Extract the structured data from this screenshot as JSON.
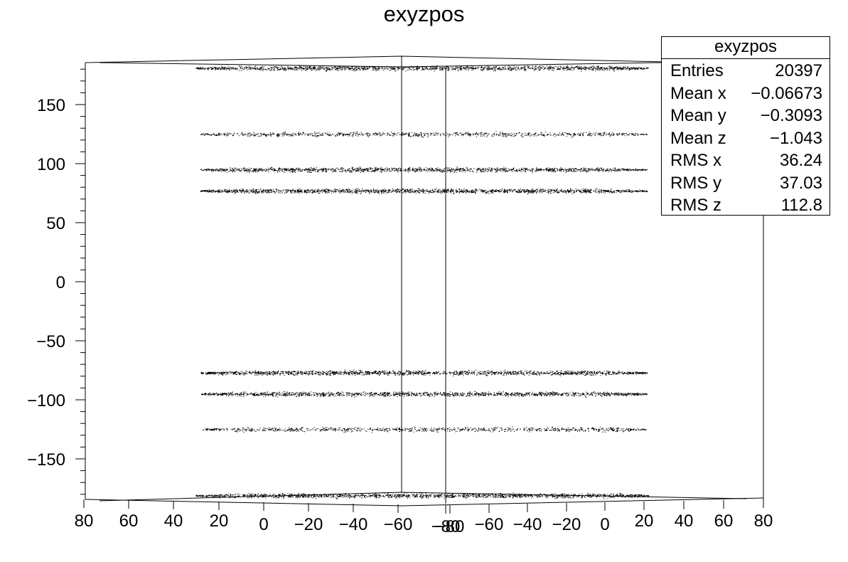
{
  "chart_data": {
    "type": "scatter",
    "title": "exyzpos",
    "y_tick_labels": [
      "150",
      "100",
      "50",
      "0",
      "−50",
      "−100",
      "−150"
    ],
    "y_tick_values": [
      150,
      100,
      50,
      0,
      -50,
      -100,
      -150
    ],
    "ylim": [
      -185,
      185
    ],
    "x_tick_labels_left": [
      "80",
      "60",
      "40",
      "20",
      "0",
      "−20",
      "−40",
      "−60",
      "−80"
    ],
    "x_tick_labels_right": [
      "−80",
      "−60",
      "−40",
      "−20",
      "0",
      "20",
      "40",
      "60",
      "80"
    ],
    "grid": false,
    "legend": "none",
    "point_color": "#000000",
    "bands": [
      {
        "y": 181,
        "density": 1.0
      },
      {
        "y": 125,
        "density": 0.6
      },
      {
        "y": 95,
        "density": 1.0
      },
      {
        "y": 77,
        "density": 1.1
      },
      {
        "y": -77,
        "density": 1.1
      },
      {
        "y": -95,
        "density": 1.0
      },
      {
        "y": -125,
        "density": 0.6
      },
      {
        "y": -181,
        "density": 1.0
      }
    ]
  },
  "stats": {
    "title": "exyzpos",
    "rows": [
      {
        "label": "Entries",
        "value": "20397"
      },
      {
        "label": "Mean x",
        "value": "−0.06673"
      },
      {
        "label": "Mean y",
        "value": "−0.3093"
      },
      {
        "label": "Mean z",
        "value": "−1.043"
      },
      {
        "label": "RMS x",
        "value": "36.24"
      },
      {
        "label": "RMS y",
        "value": "37.03"
      },
      {
        "label": "RMS z",
        "value": "112.8"
      }
    ]
  }
}
